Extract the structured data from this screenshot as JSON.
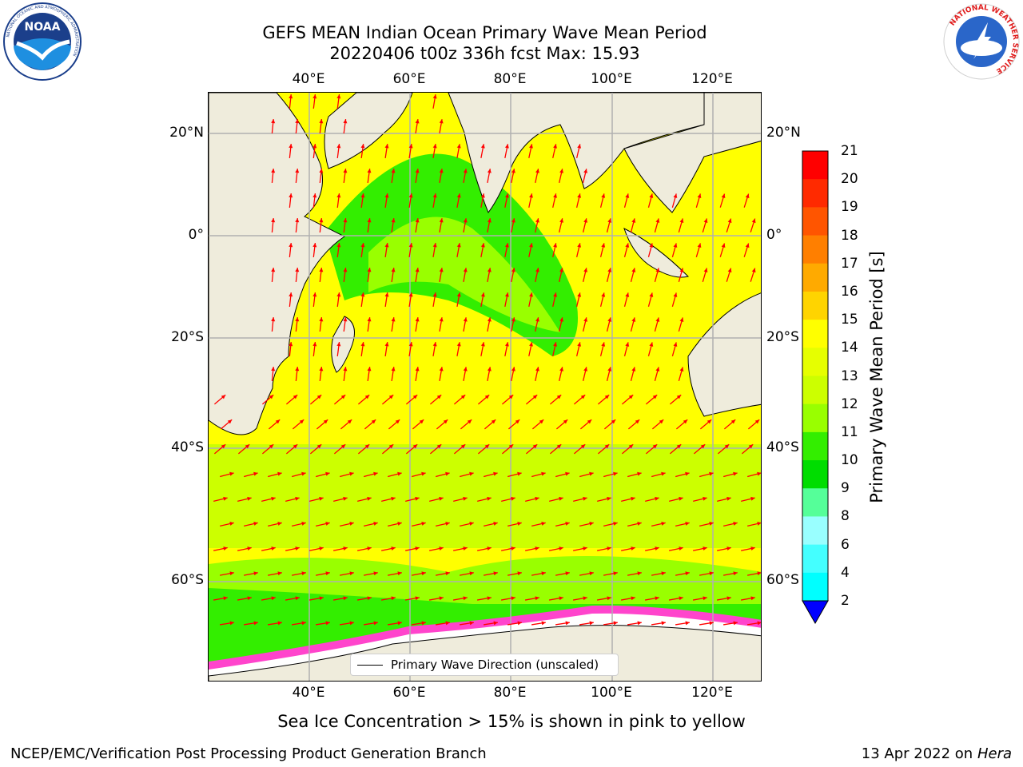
{
  "title": {
    "line1": "GEFS MEAN Indian Ocean Primary Wave Mean Period",
    "line2": "20220406 t00z 336h fcst   Max: 15.93"
  },
  "map": {
    "lon_labels": [
      "40°E",
      "60°E",
      "80°E",
      "100°E",
      "120°E"
    ],
    "lat_labels": [
      "20°N",
      "0°",
      "20°S",
      "40°S",
      "60°S"
    ],
    "land_color": "#efecdc",
    "grid_color": "#b0b0b0",
    "arrow_color": "#ff0000"
  },
  "legend": {
    "label": "Primary Wave Direction (unscaled)"
  },
  "colorbar": {
    "label": "Primary Wave Mean Period [s]",
    "ticks": [
      "21",
      "20",
      "19",
      "18",
      "17",
      "16",
      "15",
      "14",
      "13",
      "12",
      "11",
      "10",
      "9",
      "8",
      "6",
      "4",
      "2"
    ],
    "colors": [
      "#ff0000",
      "#ff2a00",
      "#ff5500",
      "#ff7f00",
      "#ffaa00",
      "#ffd400",
      "#ffff00",
      "#e6ff00",
      "#ccff00",
      "#99ff00",
      "#33ee00",
      "#00dd00",
      "#55ff99",
      "#99ffff",
      "#44ffff",
      "#00ffff",
      "#0099ff",
      "#0000ff"
    ]
  },
  "subtitle": "Sea Ice Concentration > 15% is shown in pink to yellow",
  "footer": {
    "left": "NCEP/EMC/Verification Post Processing Product Generation Branch",
    "right_prefix": "13 Apr 2022 on ",
    "right_host": "Hera"
  },
  "logos": {
    "noaa_text": "NOAA",
    "noaa_ring": "NATIONAL OCEANIC AND ATMOSPHERIC ADMINISTRATION",
    "nws_ring": "NATIONAL WEATHER SERVICE"
  }
}
